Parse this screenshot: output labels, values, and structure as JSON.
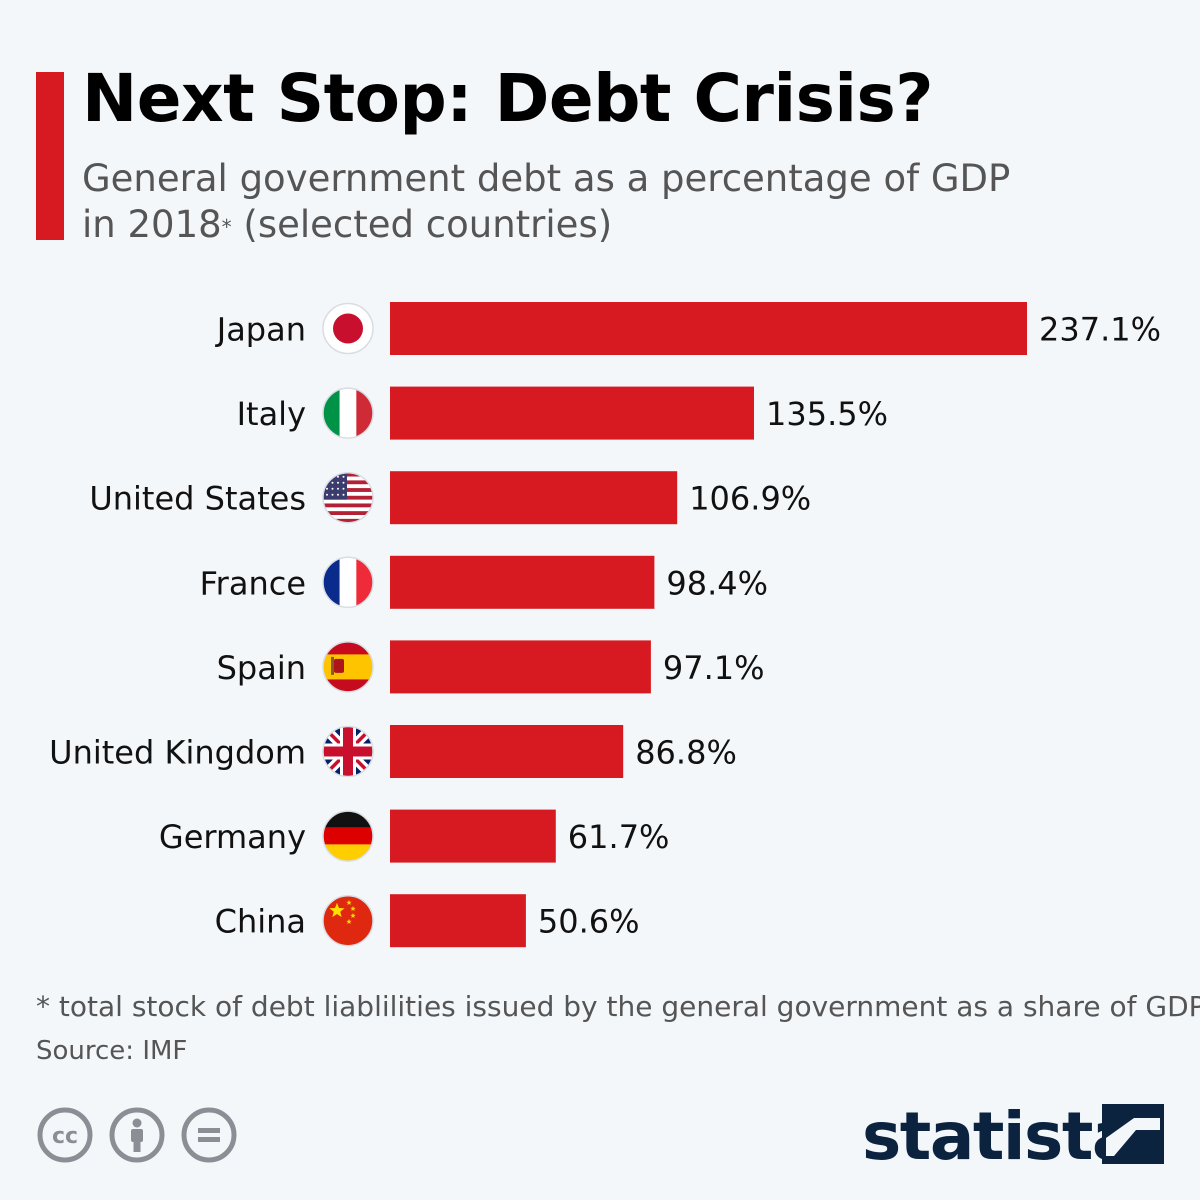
{
  "title": "Next Stop: Debt Crisis?",
  "subtitle": {
    "line1": "General government debt as a percentage of GDP",
    "line2_pre": "in 2018",
    "asterisk": "*",
    "line2_post": " (selected countries)"
  },
  "footnote": "* total stock of debt liablilities issued by the general government as a share of GDP",
  "source": "Source: IMF",
  "brand": "statista",
  "colors": {
    "bar": "#d71a21",
    "accent": "#d71a21",
    "brand": "#0c2340"
  },
  "icons": [
    "cc-icon",
    "attribution-icon",
    "no-derivatives-icon",
    "statista-logo-icon"
  ],
  "chart_data": {
    "type": "bar",
    "orientation": "horizontal",
    "categories": [
      "Japan",
      "Italy",
      "United States",
      "France",
      "Spain",
      "United Kingdom",
      "Germany",
      "China"
    ],
    "values": [
      237.1,
      135.5,
      106.9,
      98.4,
      97.1,
      86.8,
      61.7,
      50.6
    ],
    "value_labels": [
      "237.1%",
      "135.5%",
      "106.9%",
      "98.4%",
      "97.1%",
      "86.8%",
      "61.7%",
      "50.6%"
    ],
    "flags": [
      "japan-flag-icon",
      "italy-flag-icon",
      "usa-flag-icon",
      "france-flag-icon",
      "spain-flag-icon",
      "uk-flag-icon",
      "germany-flag-icon",
      "china-flag-icon"
    ],
    "title": "",
    "xlabel": "",
    "ylabel": "",
    "grid": false,
    "legend": "none"
  }
}
